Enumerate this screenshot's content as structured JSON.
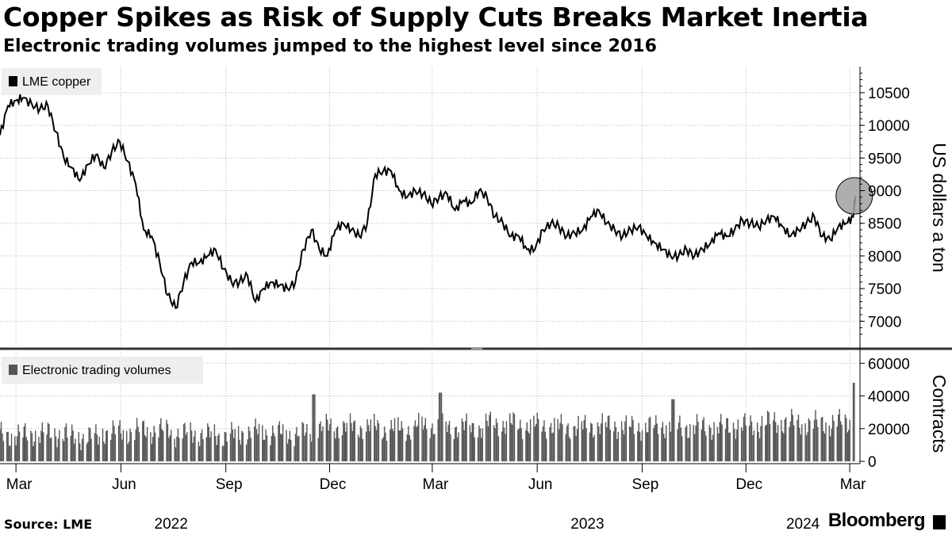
{
  "title": "Copper Spikes as Risk of Supply Cuts Breaks Market Inertia",
  "subtitle": "Electronic trading volumes jumped to the highest level since 2016",
  "source": "Source: LME",
  "brand": "Bloomberg",
  "colors": {
    "price_line": "#000000",
    "volume_bar": "#555555",
    "marker": "#a0a0a0",
    "grid": "#bbbbbb"
  },
  "chart_data": [
    {
      "type": "line",
      "title": "LME copper",
      "legend": "LME copper",
      "ylabel": "US dollars a ton",
      "ylim": [
        6700,
        10900
      ],
      "yticks": [
        7000,
        7500,
        8000,
        8500,
        9000,
        9500,
        10000,
        10500
      ],
      "x_range": [
        "2022-02-15",
        "2024-03-10"
      ],
      "series": [
        {
          "name": "LME copper",
          "x": [
            "2022-02-15",
            "2022-02-22",
            "2022-03-01",
            "2022-03-07",
            "2022-03-15",
            "2022-03-22",
            "2022-03-29",
            "2022-04-05",
            "2022-04-12",
            "2022-04-19",
            "2022-04-26",
            "2022-05-03",
            "2022-05-10",
            "2022-05-17",
            "2022-05-24",
            "2022-05-31",
            "2022-06-07",
            "2022-06-14",
            "2022-06-21",
            "2022-06-28",
            "2022-07-05",
            "2022-07-12",
            "2022-07-19",
            "2022-07-26",
            "2022-08-02",
            "2022-08-09",
            "2022-08-16",
            "2022-08-23",
            "2022-08-30",
            "2022-09-06",
            "2022-09-13",
            "2022-09-20",
            "2022-09-27",
            "2022-10-04",
            "2022-10-11",
            "2022-10-18",
            "2022-10-25",
            "2022-11-01",
            "2022-11-08",
            "2022-11-15",
            "2022-11-22",
            "2022-11-29",
            "2022-12-06",
            "2022-12-13",
            "2022-12-20",
            "2022-12-27",
            "2023-01-03",
            "2023-01-10",
            "2023-01-17",
            "2023-01-24",
            "2023-01-31",
            "2023-02-07",
            "2023-02-14",
            "2023-02-21",
            "2023-02-28",
            "2023-03-07",
            "2023-03-14",
            "2023-03-21",
            "2023-03-28",
            "2023-04-04",
            "2023-04-11",
            "2023-04-18",
            "2023-04-25",
            "2023-05-02",
            "2023-05-09",
            "2023-05-16",
            "2023-05-23",
            "2023-05-30",
            "2023-06-06",
            "2023-06-13",
            "2023-06-20",
            "2023-06-27",
            "2023-07-04",
            "2023-07-11",
            "2023-07-18",
            "2023-07-25",
            "2023-08-01",
            "2023-08-08",
            "2023-08-15",
            "2023-08-22",
            "2023-08-29",
            "2023-09-05",
            "2023-09-12",
            "2023-09-19",
            "2023-09-26",
            "2023-10-03",
            "2023-10-10",
            "2023-10-17",
            "2023-10-24",
            "2023-10-31",
            "2023-11-07",
            "2023-11-14",
            "2023-11-21",
            "2023-11-28",
            "2023-12-05",
            "2023-12-12",
            "2023-12-19",
            "2023-12-26",
            "2024-01-02",
            "2024-01-09",
            "2024-01-16",
            "2024-01-23",
            "2024-01-30",
            "2024-02-06",
            "2024-02-13",
            "2024-02-20",
            "2024-02-27",
            "2024-03-04",
            "2024-03-06"
          ],
          "values": [
            9850,
            10300,
            10380,
            10420,
            10320,
            10250,
            10300,
            9900,
            9500,
            9350,
            9150,
            9400,
            9550,
            9350,
            9600,
            9750,
            9450,
            9100,
            8400,
            8300,
            7900,
            7400,
            7200,
            7600,
            7900,
            7900,
            8000,
            8100,
            7800,
            7600,
            7600,
            7700,
            7300,
            7500,
            7600,
            7550,
            7500,
            7600,
            8100,
            8400,
            8100,
            8000,
            8400,
            8500,
            8400,
            8300,
            8500,
            9250,
            9300,
            9300,
            9000,
            8900,
            9000,
            8950,
            8800,
            8900,
            8950,
            8700,
            8850,
            8800,
            9000,
            8900,
            8600,
            8500,
            8300,
            8300,
            8100,
            8100,
            8400,
            8500,
            8450,
            8300,
            8350,
            8400,
            8600,
            8700,
            8500,
            8400,
            8300,
            8400,
            8450,
            8300,
            8200,
            8100,
            8000,
            8000,
            8100,
            8000,
            8100,
            8200,
            8350,
            8300,
            8400,
            8550,
            8500,
            8450,
            8550,
            8600,
            8450,
            8300,
            8400,
            8500,
            8600,
            8300,
            8250,
            8450,
            8500,
            8600,
            8920
          ]
        }
      ],
      "annotation": {
        "type": "circle",
        "x": "2024-03-05",
        "y": 8920
      }
    },
    {
      "type": "bar",
      "title": "Electronic trading volumes",
      "legend": "Electronic trading volumes",
      "ylabel": "Contracts",
      "ylim": [
        0,
        65000
      ],
      "yticks": [
        0,
        20000,
        40000,
        60000
      ],
      "series": [
        {
          "name": "Electronic trading volumes",
          "x": [
            "2022-02-15",
            "2022-03-15",
            "2022-04-15",
            "2022-05-15",
            "2022-06-15",
            "2022-07-15",
            "2022-08-15",
            "2022-09-15",
            "2022-10-15",
            "2022-11-15",
            "2022-11-17",
            "2022-12-15",
            "2023-01-15",
            "2023-02-15",
            "2023-03-08",
            "2023-03-15",
            "2023-04-15",
            "2023-05-15",
            "2023-06-15",
            "2023-07-15",
            "2023-08-15",
            "2023-09-15",
            "2023-09-28",
            "2023-10-15",
            "2023-11-15",
            "2023-12-15",
            "2024-01-15",
            "2024-02-15",
            "2024-03-05"
          ],
          "values": [
            16000,
            17000,
            15000,
            18000,
            19000,
            17000,
            16000,
            18000,
            17000,
            19000,
            41000,
            21000,
            20000,
            22000,
            42000,
            21000,
            23000,
            22000,
            21000,
            22000,
            21000,
            22000,
            38000,
            21000,
            22000,
            24000,
            23000,
            24000,
            48000
          ]
        }
      ]
    }
  ],
  "x_axis": {
    "month_ticks": [
      "Mar",
      "Jun",
      "Sep",
      "Dec",
      "Mar",
      "Jun",
      "Sep",
      "Dec",
      "Mar"
    ],
    "year_labels": [
      "2022",
      "2023",
      "2024"
    ]
  }
}
